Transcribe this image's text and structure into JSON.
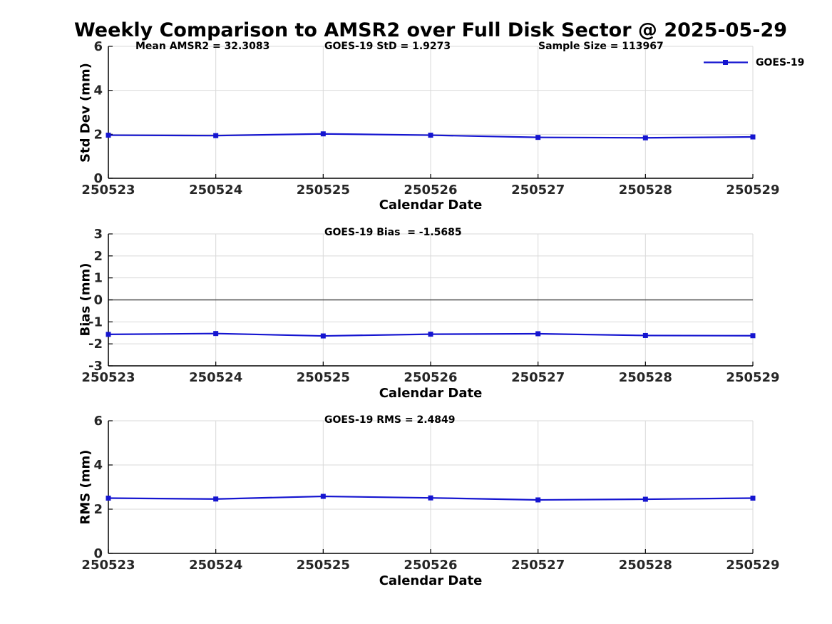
{
  "title": "Weekly Comparison to AMSR2 over Full Disk Sector @ 2025-05-29",
  "legend": {
    "label": "GOES-19"
  },
  "colors": {
    "line": "#1515d0",
    "grid": "#d9d9d9",
    "axis": "#000000",
    "zero_line": "#4d4d4d",
    "tick_text": "#262626"
  },
  "chart_data": [
    {
      "type": "line",
      "name": "std-dev",
      "annotations": [
        "Mean AMSR2 = 32.3083",
        "GOES-19 StD = 1.9273",
        "Sample Size = 113967"
      ],
      "xlabel": "Calendar Date",
      "ylabel": "Std Dev (mm)",
      "categories": [
        "250523",
        "250524",
        "250525",
        "250526",
        "250527",
        "250528",
        "250529"
      ],
      "series": [
        {
          "name": "GOES-19",
          "values": [
            1.96,
            1.94,
            2.02,
            1.96,
            1.86,
            1.84,
            1.88
          ]
        }
      ],
      "ylim": [
        0,
        6
      ],
      "yticks": [
        0,
        2,
        4,
        6
      ],
      "grid": true,
      "zero_line": false,
      "legend_position": "northeast-outside",
      "marker": "square"
    },
    {
      "type": "line",
      "name": "bias",
      "annotations": [
        "GOES-19 Bias  = -1.5685"
      ],
      "xlabel": "Calendar Date",
      "ylabel": "Bias (mm)",
      "categories": [
        "250523",
        "250524",
        "250525",
        "250526",
        "250527",
        "250528",
        "250529"
      ],
      "series": [
        {
          "name": "GOES-19",
          "values": [
            -1.57,
            -1.53,
            -1.64,
            -1.56,
            -1.54,
            -1.62,
            -1.63
          ]
        }
      ],
      "ylim": [
        -3,
        3
      ],
      "yticks": [
        -3,
        -2,
        -1,
        0,
        1,
        2,
        3
      ],
      "grid": true,
      "zero_line": true,
      "marker": "square"
    },
    {
      "type": "line",
      "name": "rms",
      "annotations": [
        "GOES-19 RMS = 2.4849"
      ],
      "xlabel": "Calendar Date",
      "ylabel": "RMS (mm)",
      "categories": [
        "250523",
        "250524",
        "250525",
        "250526",
        "250527",
        "250528",
        "250529"
      ],
      "series": [
        {
          "name": "GOES-19",
          "values": [
            2.5,
            2.46,
            2.58,
            2.51,
            2.42,
            2.45,
            2.5
          ]
        }
      ],
      "ylim": [
        0,
        6
      ],
      "yticks": [
        0,
        2,
        4,
        6
      ],
      "grid": true,
      "zero_line": false,
      "marker": "square"
    }
  ]
}
